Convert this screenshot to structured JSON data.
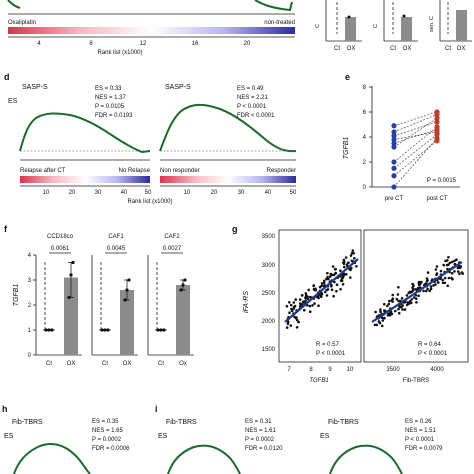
{
  "colors": {
    "curve": "#1c6a2c",
    "bar": "#8c8c8c",
    "gradient_low": "#d9344a",
    "gradient_mid": "#ffffff",
    "gradient_high": "#2d2a9c",
    "fit_line": "#1f3a8a",
    "pre_point": "#2b3f9e",
    "post_point": "#c0392b"
  },
  "top": {
    "rank_axis_label": "Rank list (x1000)",
    "left": {
      "legend_left": "Oxaliplatin",
      "legend_right": "non-treated",
      "ticks": [
        "4",
        "8",
        "12",
        "16",
        "20"
      ]
    },
    "bars": [
      {
        "ylabel": "C",
        "xticks": [
          "Ct",
          "OX"
        ]
      },
      {
        "ylabel": "C",
        "xticks": [
          "Ct",
          "OX"
        ]
      },
      {
        "ylabel": "sen. C",
        "xticks": [
          "Ct",
          "OX"
        ]
      }
    ]
  },
  "panel_d": {
    "label": "d",
    "ylabel": "ES",
    "rank_axis_label": "Rank list (x1000)",
    "ticks": [
      "10",
      "20",
      "30",
      "40",
      "50"
    ],
    "plots": [
      {
        "title": "SASP-S",
        "stats": [
          "ES = 0.33",
          "NES = 1.37",
          "P = 0.0105",
          "FDR = 0.0193"
        ],
        "legend_left": "Relapse after CT",
        "legend_right": "No Relapse"
      },
      {
        "title": "SASP-S",
        "stats": [
          "ES = 0.49",
          "NES = 2.21",
          "P < 0.0001",
          "FDR < 0.0001"
        ],
        "legend_left": "Non responder",
        "legend_right": "Responder"
      }
    ]
  },
  "panel_e": {
    "label": "e",
    "ylabel": "TGFB1",
    "yticks": [
      "0",
      "2",
      "4",
      "6",
      "8"
    ],
    "xticks": [
      "pre CT",
      "post CT"
    ],
    "pvalue": "P = 0.0015"
  },
  "panel_f": {
    "label": "f",
    "ylabel": "TGFB1",
    "yticks": [
      "0",
      "1",
      "2",
      "3",
      "4"
    ],
    "groups": [
      {
        "title": "CCD18co",
        "pvalue": "0.0061",
        "xticks": [
          "Ct",
          "OX"
        ]
      },
      {
        "title": "CAF1",
        "pvalue": "0.0045",
        "xticks": [
          "Ct",
          "OX"
        ]
      },
      {
        "title": "CAF2",
        "pvalue": "0.0027",
        "xticks": [
          "Ct",
          "Ox"
        ]
      }
    ]
  },
  "panel_g": {
    "label": "g",
    "ylabel": "iFA-RS",
    "yticks": [
      "1500",
      "2000",
      "2500",
      "3000",
      "3500"
    ],
    "left": {
      "xlabel": "TGFB1",
      "xticks": [
        "7",
        "8",
        "9",
        "10"
      ],
      "stats": [
        "R = 0.57",
        "P < 0.0001"
      ]
    },
    "right": {
      "xlabel": "Fib-TBRS",
      "xticks": [
        "3500",
        "4000"
      ],
      "stats": [
        "R = 0.64",
        "P < 0.0001"
      ]
    }
  },
  "panel_h": {
    "label": "h",
    "title": "Fib-TBRS",
    "ylabel": "ES",
    "stats": [
      "ES = 0.35",
      "NES = 1.65",
      "P = 0.0002",
      "FDR = 0.0006"
    ]
  },
  "panel_i": {
    "label": "i",
    "plots": [
      {
        "title": "Fib-TBRS",
        "ylabel": "ES",
        "stats": [
          "ES = 0.31",
          "NES = 1.61",
          "P = 0.0002",
          "FDR = 0.0120"
        ]
      },
      {
        "title": "Fib-TBRS",
        "ylabel": "ES",
        "stats": [
          "ES = 0.26",
          "NES = 1.51",
          "P < 0.0001",
          "FDR = 0.0079"
        ]
      }
    ]
  },
  "chart_data": [
    {
      "type": "bar",
      "id": "f-CCD18co",
      "title": "CCD18co",
      "ylabel": "TGFB1",
      "categories": [
        "Ct",
        "OX"
      ],
      "values": [
        1.0,
        3.1
      ],
      "points": [
        [
          1.0,
          1.0,
          1.0
        ],
        [
          2.3,
          3.2,
          3.7
        ]
      ],
      "ylim": [
        0,
        4
      ],
      "annotation": "0.0061"
    },
    {
      "type": "bar",
      "id": "f-CAF1",
      "title": "CAF1",
      "ylabel": "TGFB1",
      "categories": [
        "Ct",
        "OX"
      ],
      "values": [
        1.0,
        2.6
      ],
      "points": [
        [
          1.0,
          1.0,
          1.0
        ],
        [
          2.2,
          2.6,
          3.0
        ]
      ],
      "ylim": [
        0,
        4
      ],
      "annotation": "0.0045"
    },
    {
      "type": "bar",
      "id": "f-CAF2",
      "title": "CAF2",
      "ylabel": "TGFB1",
      "categories": [
        "Ct",
        "Ox"
      ],
      "values": [
        1.0,
        2.8
      ],
      "points": [
        [
          1.0,
          1.0,
          1.0
        ],
        [
          2.6,
          2.8,
          3.0
        ]
      ],
      "ylim": [
        0,
        4
      ],
      "annotation": "0.0027"
    },
    {
      "type": "scatter",
      "id": "e-paired",
      "ylabel": "TGFB1",
      "categories": [
        "pre CT",
        "post CT"
      ],
      "pairs": [
        [
          0.0,
          3.9
        ],
        [
          0.9,
          3.7
        ],
        [
          1.5,
          4.2
        ],
        [
          2.0,
          4.8
        ],
        [
          3.2,
          5.5
        ],
        [
          3.5,
          4.6
        ],
        [
          3.8,
          4.4
        ],
        [
          4.1,
          5.2
        ],
        [
          4.4,
          5.8
        ],
        [
          4.9,
          6.0
        ]
      ],
      "ylim": [
        0,
        8
      ]
    }
  ]
}
